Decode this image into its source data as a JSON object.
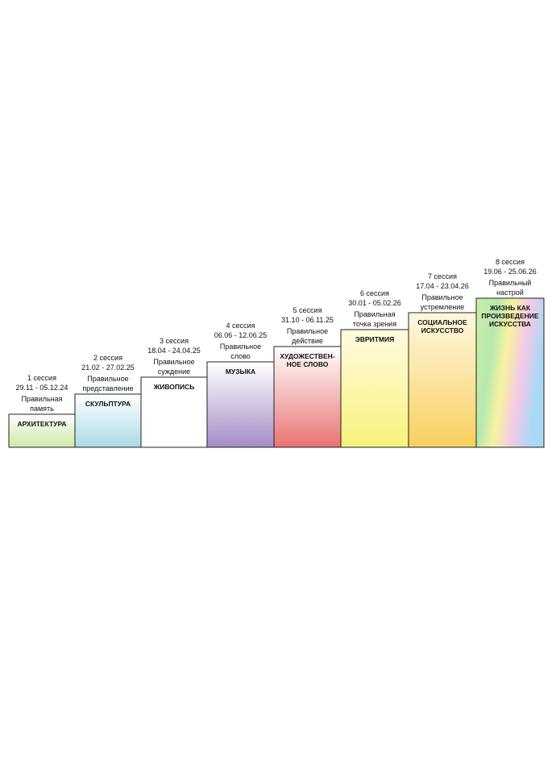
{
  "steps": [
    {
      "session": "1 сессия",
      "dates": "29.11 - 05.12.24",
      "virtue": [
        "Правильная",
        "память"
      ],
      "art": [
        "АРХИТЕКТУРА"
      ]
    },
    {
      "session": "2 сессия",
      "dates": "21.02 - 27.02.25",
      "virtue": [
        "Правильное",
        "представление"
      ],
      "art": [
        "СКУЛЬПТУРА"
      ]
    },
    {
      "session": "3 сессия",
      "dates": "18.04 - 24.04.25",
      "virtue": [
        "Правильное",
        "суждение"
      ],
      "art": [
        "ЖИВОПИСЬ"
      ]
    },
    {
      "session": "4 сессия",
      "dates": "06.06 - 12.06.25",
      "virtue": [
        "Правильное",
        "слово"
      ],
      "art": [
        "МУЗЫКА"
      ]
    },
    {
      "session": "5 сессия",
      "dates": "31.10 - 06.11.25",
      "virtue": [
        "Правильное",
        "действие"
      ],
      "art": [
        "ХУДОЖЕСТВЕН-",
        "НОЕ СЛОВО"
      ]
    },
    {
      "session": "6 сессия",
      "dates": "30.01 - 05.02.26",
      "virtue": [
        "Правильная",
        "точка зрения"
      ],
      "art": [
        "ЭВРИТМИЯ"
      ]
    },
    {
      "session": "7 сессия",
      "dates": "17.04 - 23.04.26",
      "virtue": [
        "Правильное",
        "устремление"
      ],
      "art": [
        "СОЦИАЛЬНОЕ",
        "ИСКУССТВО"
      ]
    },
    {
      "session": "8 сессия",
      "dates": "19.06 - 25.06.26",
      "virtue": [
        "Правильный",
        "настрой"
      ],
      "art": [
        "ЖИЗНЬ КАК",
        "ПРОИЗВЕДЕНИЕ",
        "ИСКУССТВА"
      ]
    }
  ]
}
